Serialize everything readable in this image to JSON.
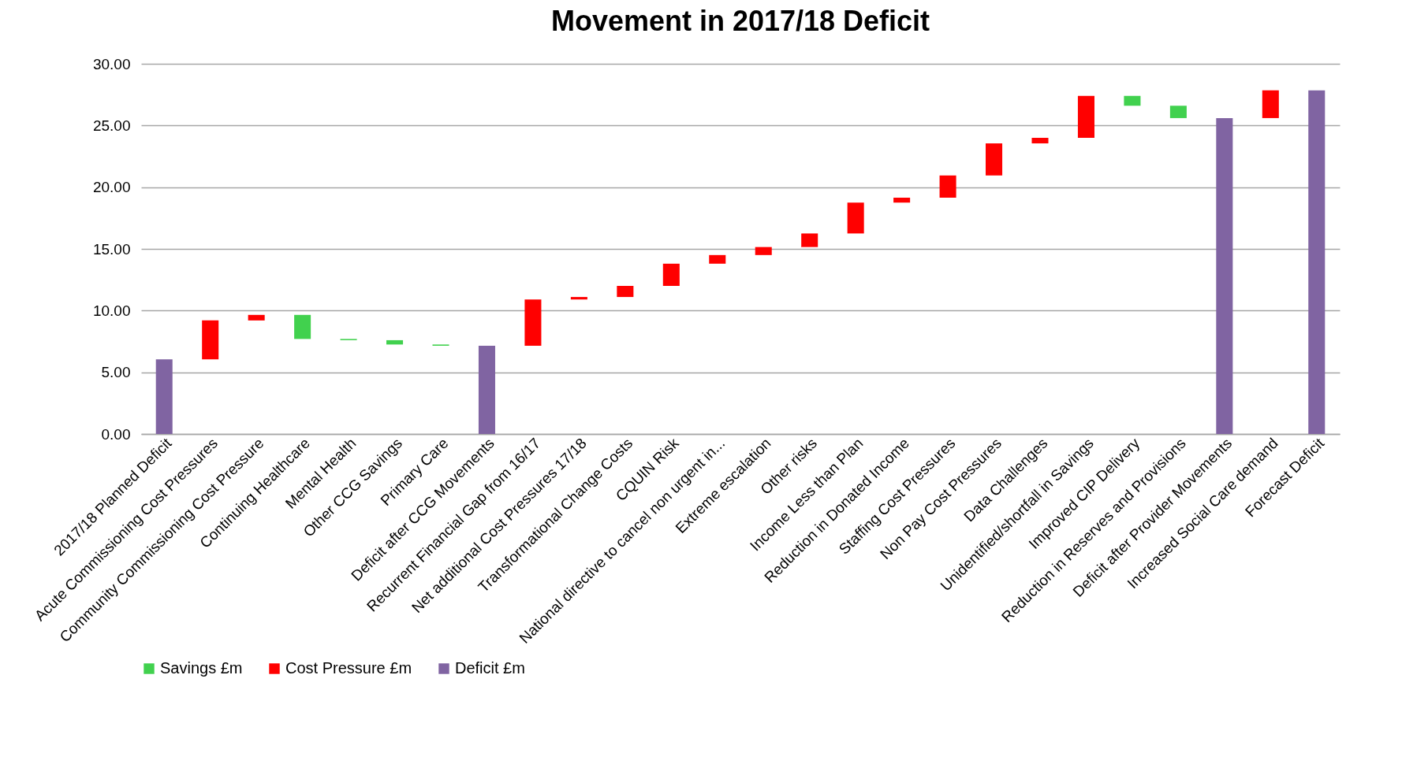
{
  "chart_data": {
    "type": "bar",
    "title": "Movement in 2017/18 Deficit",
    "categories": [
      "2017/18 Planned Deficit",
      "Acute Commissioning Cost Pressures",
      "Community Commissioning Cost Pressure",
      "Continuing Healthcare",
      "Mental Health",
      "Other CCG Savings",
      "Primary Care",
      "Deficit after CCG Movements",
      "Recurrent Financial Gap from 16/17",
      "Net additional Cost Pressures 17/18",
      "Transformational Change Costs",
      "CQUIN Risk",
      "National directive to cancel non urgent in...",
      "Extreme escalation",
      "Other risks",
      "Income Less than Plan",
      "Reduction in Donated Income",
      "Staffing Cost Pressures",
      "Non Pay Cost Pressures",
      "Data Challenges",
      "Unidentified/shortfall in Savings",
      "Improved CIP Delivery",
      "Reduction in Reserves and Provisions",
      "Deficit after Provider Movements",
      "Increased Social Care demand",
      "Forecast Deficit"
    ],
    "series": [
      {
        "name": "Savings £m",
        "color": "#41d14e",
        "values": [
          null,
          null,
          null,
          1.95,
          0.1,
          0.35,
          0.1,
          null,
          null,
          null,
          null,
          null,
          null,
          null,
          null,
          null,
          null,
          null,
          null,
          null,
          null,
          0.8,
          1.0,
          null,
          null,
          null
        ],
        "base": [
          null,
          null,
          null,
          7.7,
          7.6,
          7.25,
          7.15,
          null,
          null,
          null,
          null,
          null,
          null,
          null,
          null,
          null,
          null,
          null,
          null,
          null,
          null,
          26.6,
          25.6,
          null,
          null,
          null
        ]
      },
      {
        "name": "Cost Pressure £m",
        "color": "#ff0000",
        "values": [
          null,
          3.15,
          0.45,
          null,
          null,
          null,
          null,
          null,
          3.75,
          0.2,
          0.9,
          1.8,
          0.7,
          0.65,
          1.1,
          2.5,
          0.4,
          1.8,
          2.6,
          0.45,
          3.4,
          null,
          null,
          null,
          2.25,
          null
        ],
        "base": [
          null,
          6.05,
          9.2,
          null,
          null,
          null,
          null,
          null,
          7.15,
          10.9,
          11.1,
          12.0,
          13.8,
          14.5,
          15.15,
          16.25,
          18.75,
          19.15,
          20.95,
          23.55,
          24.0,
          null,
          null,
          null,
          25.6,
          null
        ]
      },
      {
        "name": "Deficit £m",
        "color": "#8064a2",
        "values": [
          6.05,
          null,
          null,
          null,
          null,
          null,
          null,
          7.15,
          null,
          null,
          null,
          null,
          null,
          null,
          null,
          null,
          null,
          null,
          null,
          null,
          null,
          null,
          null,
          25.6,
          null,
          27.85
        ]
      }
    ],
    "ylim": [
      0,
      30
    ],
    "yticks": [
      {
        "value": 0,
        "label": "0.00"
      },
      {
        "value": 5,
        "label": "5.00"
      },
      {
        "value": 10,
        "label": "10.00"
      },
      {
        "value": 15,
        "label": "15.00"
      },
      {
        "value": 20,
        "label": "20.00"
      },
      {
        "value": 25,
        "label": "25.00"
      },
      {
        "value": 30,
        "label": "30.00"
      }
    ],
    "grid": "y",
    "legend": "bottom"
  }
}
